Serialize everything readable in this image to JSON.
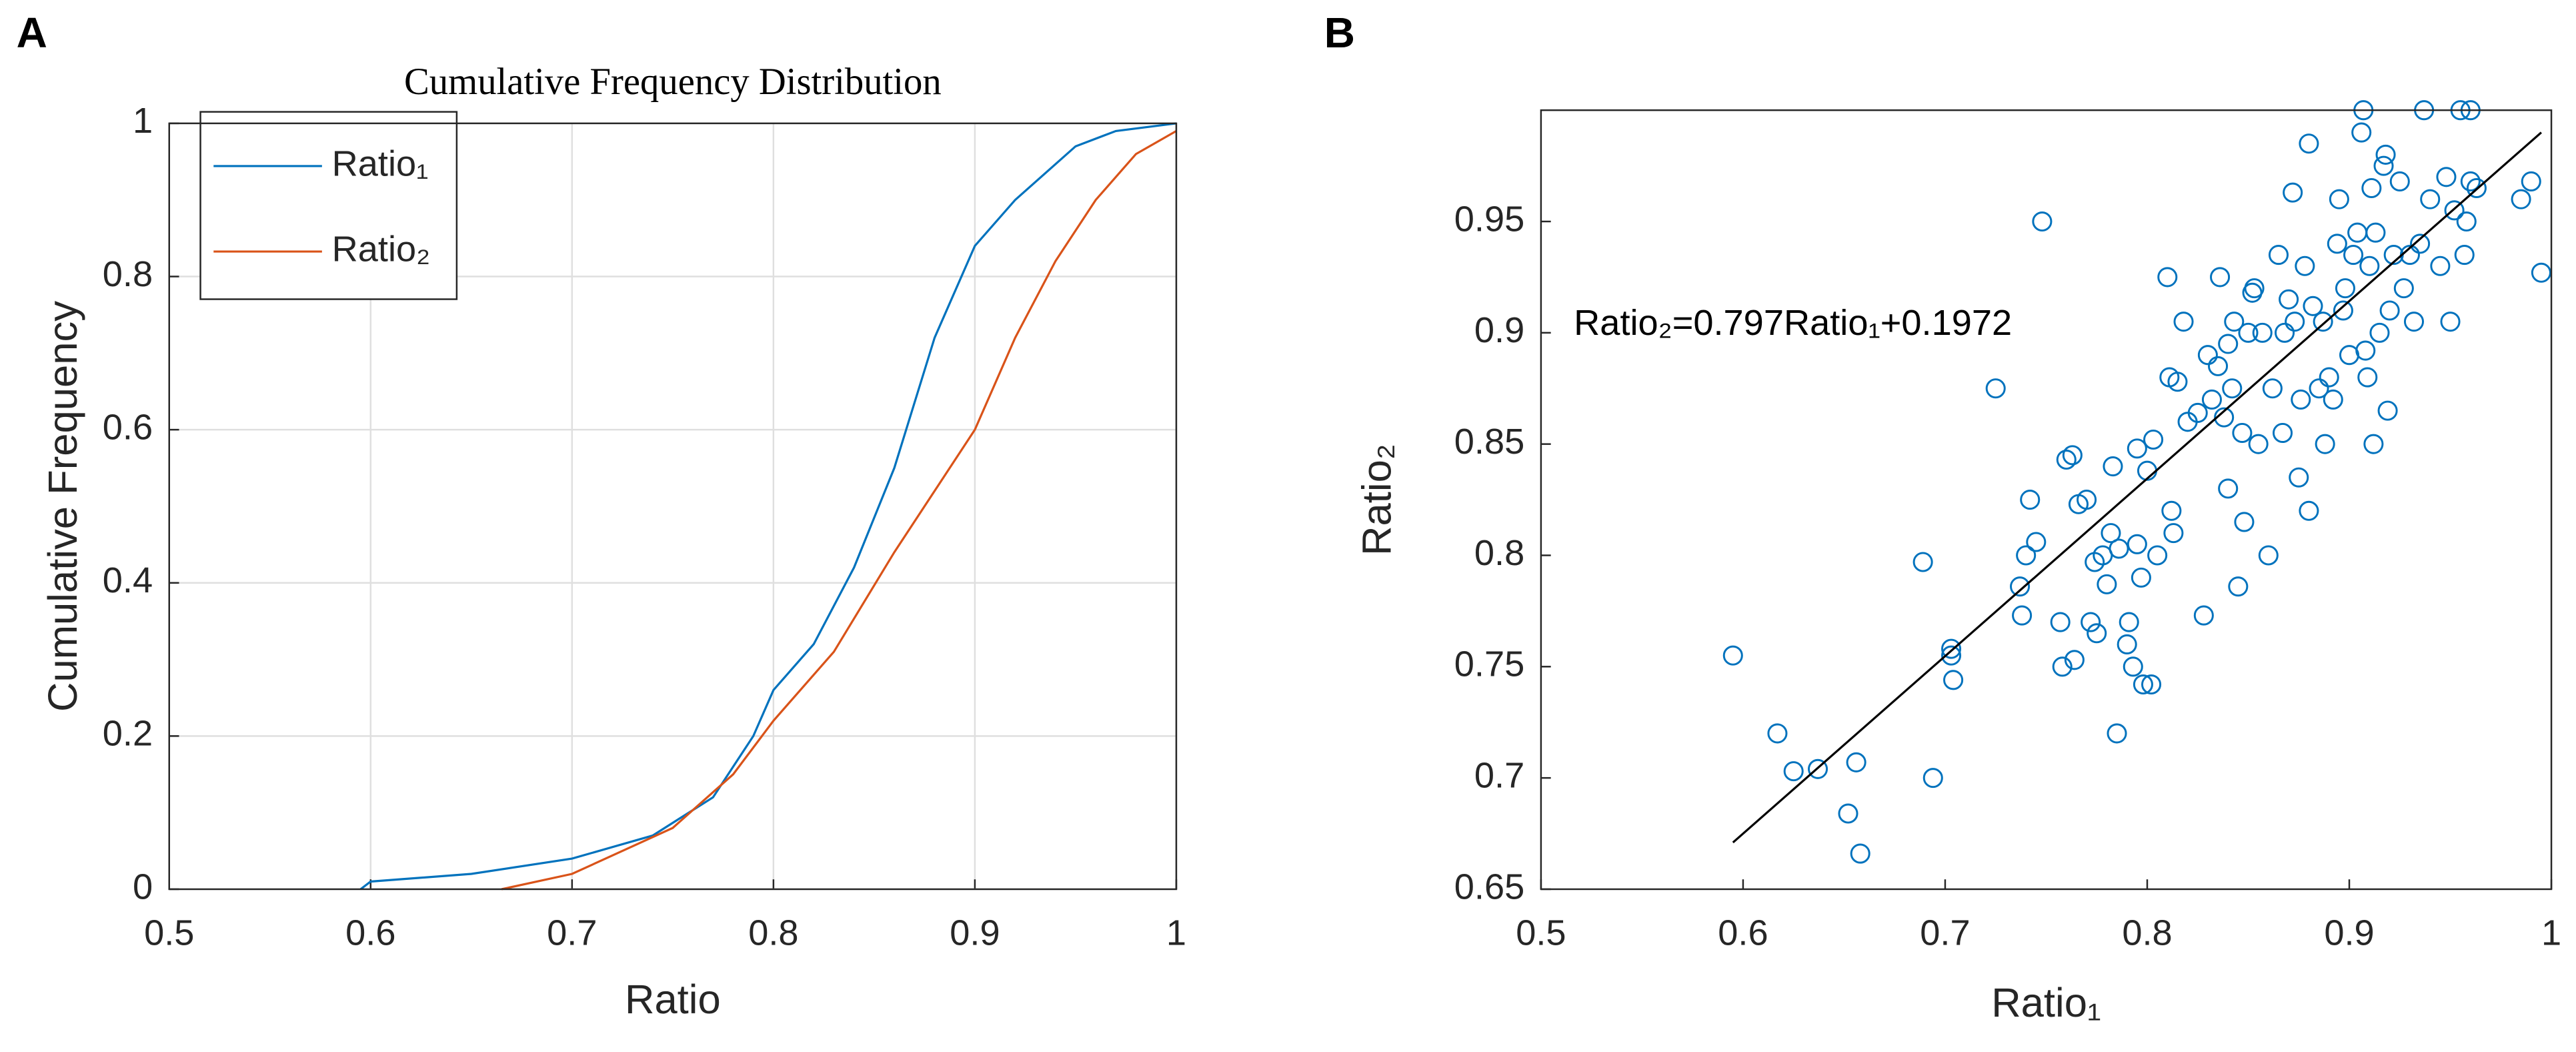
{
  "chart_data": [
    {
      "type": "line",
      "panel_label": "A",
      "title": "Cumulative Frequency Distribution",
      "x_label": "Ratio",
      "y_label": "Cumulative Frequency",
      "xlim": [
        0.5,
        1
      ],
      "ylim": [
        0,
        1
      ],
      "xticks": [
        0.5,
        0.6,
        0.7,
        0.8,
        0.9,
        1
      ],
      "yticks": [
        0,
        0.2,
        0.4,
        0.6,
        0.8,
        1
      ],
      "grid": true,
      "legend": "upper left",
      "series": [
        {
          "name": "Ratio₁",
          "color": "#0072bd",
          "x": [
            0.595,
            0.6,
            0.65,
            0.7,
            0.74,
            0.77,
            0.79,
            0.8,
            0.82,
            0.84,
            0.86,
            0.88,
            0.9,
            0.92,
            0.95,
            0.97,
            1
          ],
          "values": [
            0,
            0.01,
            0.02,
            0.04,
            0.07,
            0.12,
            0.2,
            0.26,
            0.32,
            0.42,
            0.55,
            0.72,
            0.84,
            0.9,
            0.97,
            0.99,
            1
          ]
        },
        {
          "name": "Ratio₂",
          "color": "#d95319",
          "x": [
            0.665,
            0.7,
            0.75,
            0.78,
            0.8,
            0.83,
            0.86,
            0.88,
            0.9,
            0.92,
            0.94,
            0.96,
            0.98,
            1
          ],
          "values": [
            0,
            0.02,
            0.08,
            0.15,
            0.22,
            0.31,
            0.44,
            0.52,
            0.6,
            0.72,
            0.82,
            0.9,
            0.96,
            0.99
          ]
        }
      ]
    },
    {
      "type": "scatter",
      "panel_label": "B",
      "x_label": "Ratio₁",
      "y_label": "Ratio₂",
      "annotation": "Ratio₂=0.797Ratio₁+0.1972",
      "xlim": [
        0.5,
        1
      ],
      "ylim": [
        0.65,
        1.0
      ],
      "xticks": [
        0.5,
        0.6,
        0.7,
        0.8,
        0.9,
        1
      ],
      "yticks": [
        0.65,
        0.7,
        0.75,
        0.8,
        0.85,
        0.9,
        0.95
      ],
      "grid": false,
      "color": "#0072bd",
      "x": [
        0.595,
        0.617,
        0.625,
        0.637,
        0.652,
        0.656,
        0.658,
        0.689,
        0.694,
        0.703,
        0.703,
        0.704,
        0.725,
        0.737,
        0.738,
        0.74,
        0.742,
        0.745,
        0.748,
        0.757,
        0.758,
        0.76,
        0.763,
        0.764,
        0.766,
        0.77,
        0.772,
        0.774,
        0.775,
        0.778,
        0.78,
        0.782,
        0.783,
        0.785,
        0.786,
        0.79,
        0.791,
        0.793,
        0.795,
        0.795,
        0.797,
        0.798,
        0.8,
        0.802,
        0.803,
        0.805,
        0.81,
        0.811,
        0.812,
        0.813,
        0.815,
        0.818,
        0.82,
        0.825,
        0.828,
        0.83,
        0.832,
        0.835,
        0.836,
        0.838,
        0.84,
        0.84,
        0.842,
        0.843,
        0.845,
        0.847,
        0.848,
        0.85,
        0.852,
        0.853,
        0.855,
        0.857,
        0.86,
        0.862,
        0.865,
        0.867,
        0.868,
        0.87,
        0.872,
        0.873,
        0.875,
        0.876,
        0.878,
        0.88,
        0.88,
        0.882,
        0.885,
        0.887,
        0.888,
        0.89,
        0.892,
        0.894,
        0.895,
        0.897,
        0.898,
        0.9,
        0.902,
        0.904,
        0.906,
        0.907,
        0.908,
        0.909,
        0.91,
        0.911,
        0.912,
        0.913,
        0.915,
        0.917,
        0.918,
        0.919,
        0.92,
        0.922,
        0.925,
        0.927,
        0.93,
        0.932,
        0.935,
        0.937,
        0.94,
        0.945,
        0.948,
        0.95,
        0.952,
        0.955,
        0.957,
        0.958,
        0.96,
        0.96,
        0.963,
        0.99,
        0.995,
        0.985
      ],
      "values": [
        0.755,
        0.72,
        0.703,
        0.704,
        0.684,
        0.707,
        0.666,
        0.797,
        0.7,
        0.758,
        0.755,
        0.744,
        0.875,
        0.786,
        0.773,
        0.8,
        0.825,
        0.806,
        0.95,
        0.77,
        0.75,
        0.843,
        0.845,
        0.753,
        0.823,
        0.825,
        0.77,
        0.797,
        0.765,
        0.8,
        0.787,
        0.81,
        0.84,
        0.72,
        0.803,
        0.76,
        0.77,
        0.75,
        0.848,
        0.805,
        0.79,
        0.742,
        0.838,
        0.742,
        0.852,
        0.8,
        0.925,
        0.88,
        0.82,
        0.81,
        0.878,
        0.905,
        0.86,
        0.864,
        0.773,
        0.89,
        0.87,
        0.885,
        0.925,
        0.862,
        0.83,
        0.895,
        0.875,
        0.905,
        0.786,
        0.855,
        0.815,
        0.9,
        0.918,
        0.92,
        0.85,
        0.9,
        0.8,
        0.875,
        0.935,
        0.855,
        0.9,
        0.915,
        0.963,
        0.905,
        0.835,
        0.87,
        0.93,
        0.985,
        0.82,
        0.912,
        0.875,
        0.905,
        0.85,
        0.88,
        0.87,
        0.94,
        0.96,
        0.91,
        0.92,
        0.89,
        0.935,
        0.945,
        0.99,
        1.0,
        0.892,
        0.88,
        0.93,
        0.965,
        0.85,
        0.945,
        0.9,
        0.975,
        0.98,
        0.865,
        0.91,
        0.935,
        0.968,
        0.92,
        0.935,
        0.905,
        0.94,
        1.0,
        0.96,
        0.93,
        0.97,
        0.905,
        0.955,
        1.0,
        0.935,
        0.95,
        1.0,
        0.968,
        0.965,
        0.968,
        0.927,
        0.96
      ],
      "fit_line": {
        "color": "#000000",
        "x": [
          0.595,
          0.995
        ],
        "values": [
          0.671,
          0.99
        ]
      }
    }
  ]
}
